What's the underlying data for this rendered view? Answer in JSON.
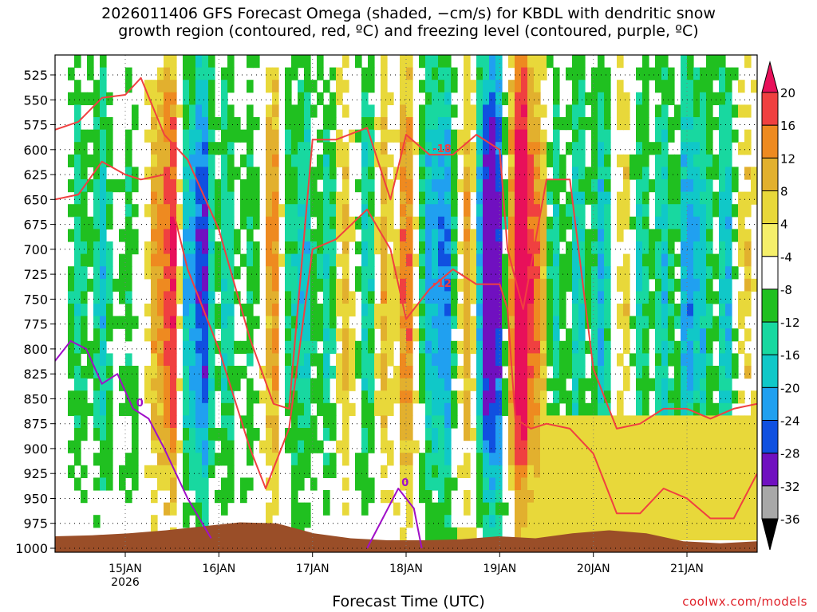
{
  "title": {
    "line1": "2026011406 GFS Forecast Omega (shaded, −cm/s) for KBDL with dendritic snow",
    "line2": "growth region (contoured, red, ºC) and freezing level (contoured, purple, ºC)"
  },
  "credit": "coolwx.com/models",
  "chart_data": {
    "type": "heatmap",
    "title": "2026011406 GFS Forecast Omega (shaded, −cm/s) for KBDL with dendritic snow growth region (contoured, red, ºC) and freezing level (contoured, purple, ºC)",
    "xlabel": "Forecast Time (UTC)",
    "ylabel": "",
    "x_ticks": [
      "15JAN\n2026",
      "16JAN",
      "17JAN",
      "18JAN",
      "19JAN",
      "20JAN",
      "21JAN"
    ],
    "x_tick_hours": [
      18,
      42,
      66,
      90,
      114,
      138,
      162
    ],
    "x_range_hours": [
      0,
      180
    ],
    "y_ticks": [
      525,
      550,
      575,
      600,
      625,
      650,
      675,
      700,
      725,
      750,
      775,
      800,
      825,
      850,
      875,
      900,
      925,
      950,
      975,
      1000
    ],
    "y_range": [
      1004,
      505
    ],
    "y_unit": "hPa",
    "grid": true,
    "colorbar": {
      "levels": [
        20,
        16,
        12,
        8,
        4,
        -4,
        -8,
        -12,
        -16,
        -20,
        -24,
        -28,
        -32,
        -36
      ],
      "colors": [
        "#e8105a",
        "#f04040",
        "#ee8a20",
        "#e2b02e",
        "#e8d83a",
        "#f5ef6a",
        "#ffffff",
        "#20c020",
        "#18d8a0",
        "#10c8c8",
        "#20a0f0",
        "#1050e0",
        "#7010c0",
        "#a8a8a8",
        "#000000"
      ]
    },
    "contour_labels_red": [
      "-18",
      "-12"
    ],
    "contour_labels_purple": [
      "0"
    ],
    "series": [
      {
        "name": "-18",
        "color": "#f04040",
        "x": [
          0,
          6,
          12,
          18,
          22,
          28,
          34,
          42,
          50,
          56,
          60,
          66,
          72,
          80,
          86,
          90,
          96,
          102,
          108,
          114,
          116,
          120,
          126,
          132,
          138,
          144,
          150,
          156,
          162,
          168,
          174,
          180
        ],
        "y": [
          580,
          572,
          548,
          545,
          528,
          585,
          610,
          680,
          790,
          855,
          860,
          590,
          590,
          578,
          650,
          585,
          605,
          605,
          585,
          600,
          700,
          760,
          630,
          630,
          820,
          880,
          875,
          860,
          860,
          870,
          860,
          855
        ]
      },
      {
        "name": "-12",
        "color": "#f04040",
        "x": [
          0,
          6,
          12,
          18,
          22,
          28,
          34,
          42,
          50,
          54,
          60,
          66,
          72,
          80,
          86,
          90,
          96,
          102,
          108,
          114,
          116,
          118,
          122,
          126,
          132,
          138,
          144,
          150,
          156,
          162,
          168,
          174,
          180
        ],
        "y": [
          650,
          645,
          612,
          625,
          630,
          625,
          720,
          800,
          900,
          940,
          880,
          700,
          690,
          660,
          700,
          770,
          740,
          720,
          735,
          735,
          760,
          870,
          880,
          875,
          880,
          905,
          965,
          965,
          940,
          950,
          970,
          970,
          925
        ]
      },
      {
        "name": "0",
        "color": "#a010c8",
        "x": [
          0,
          4,
          8,
          12,
          16,
          20,
          24,
          28,
          34,
          40
        ],
        "y": [
          812,
          792,
          800,
          835,
          825,
          860,
          870,
          900,
          950,
          990
        ]
      },
      {
        "name": "0",
        "color": "#a010c8",
        "x": [
          80,
          84,
          88,
          92,
          94
        ],
        "y": [
          1000,
          970,
          940,
          960,
          1000
        ]
      }
    ],
    "terrain_top_hPa": [
      988,
      987,
      985,
      982,
      978,
      974,
      975,
      985,
      990,
      992,
      992,
      991,
      988,
      990,
      985,
      982,
      985,
      993,
      995,
      993
    ]
  },
  "plot": {
    "xlabel": "Forecast Time (UTC)"
  }
}
